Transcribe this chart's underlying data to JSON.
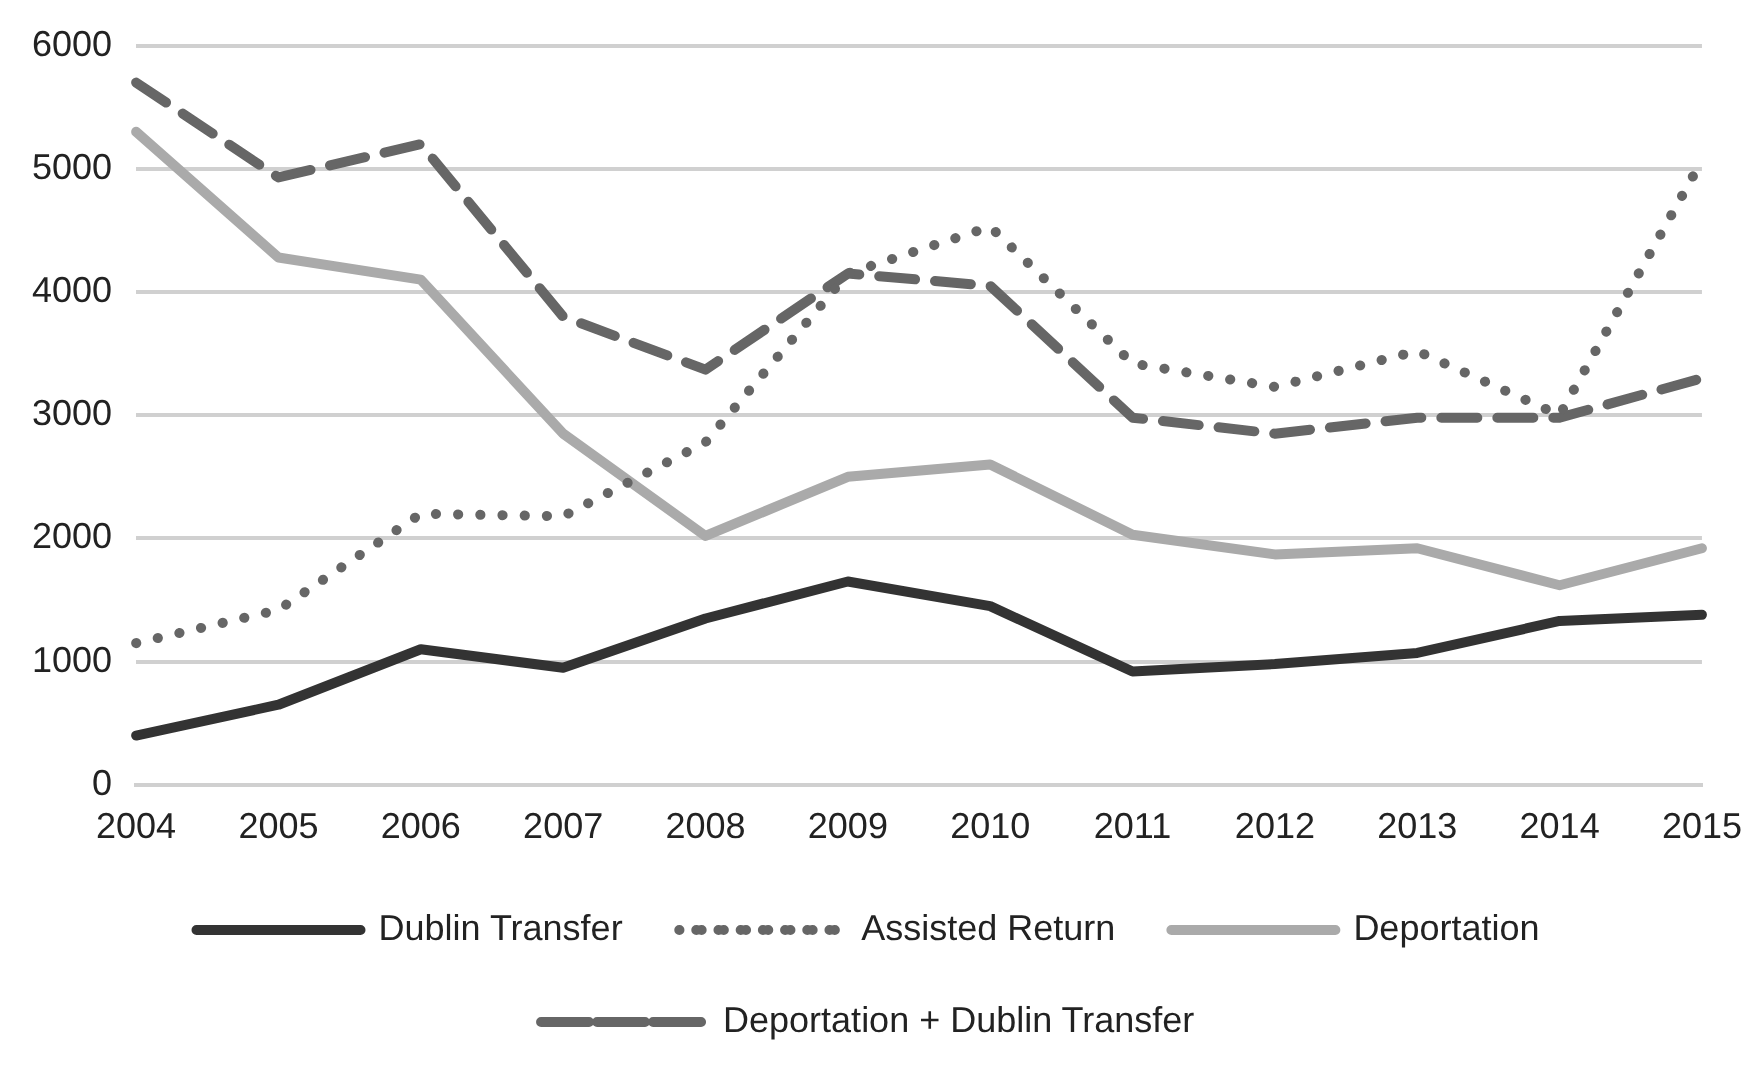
{
  "chart_data": {
    "type": "line",
    "categories": [
      "2004",
      "2005",
      "2006",
      "2007",
      "2008",
      "2009",
      "2010",
      "2011",
      "2012",
      "2013",
      "2014",
      "2015"
    ],
    "series": [
      {
        "name": "Dublin Transfer",
        "color": "#333333",
        "line_style": "solid",
        "values": [
          400,
          650,
          1100,
          950,
          1350,
          1650,
          1450,
          920,
          980,
          1070,
          1330,
          1380
        ]
      },
      {
        "name": "Assisted Return",
        "color": "#666666",
        "line_style": "dotted",
        "values": [
          1150,
          1420,
          2200,
          2180,
          2780,
          4150,
          4530,
          3420,
          3230,
          3520,
          3000,
          5070
        ]
      },
      {
        "name": "Deportation",
        "color": "#aaaaaa",
        "line_style": "solid",
        "values": [
          5300,
          4280,
          4100,
          2850,
          2020,
          2500,
          2600,
          2030,
          1870,
          1920,
          1620,
          1920
        ]
      },
      {
        "name": "Deportation + Dublin Transfer",
        "color": "#666666",
        "line_style": "dashed",
        "values": [
          5700,
          4930,
          5200,
          3800,
          3370,
          4150,
          4050,
          2980,
          2850,
          2980,
          2980,
          3300
        ]
      }
    ],
    "ylim": [
      0,
      6000
    ],
    "yticks": [
      0,
      1000,
      2000,
      3000,
      4000,
      5000,
      6000
    ],
    "grid": "y",
    "legend": "bottom",
    "marker": "none"
  }
}
